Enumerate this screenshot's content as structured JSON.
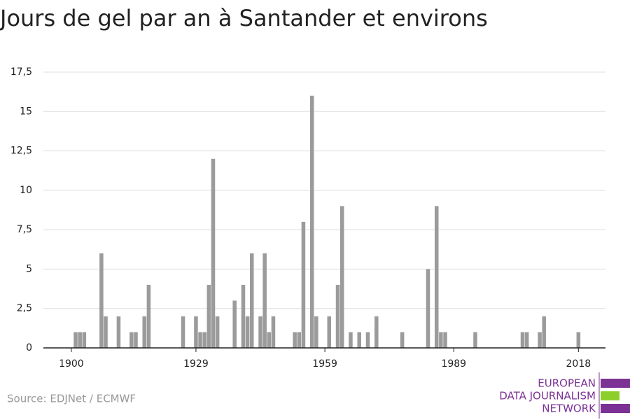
{
  "chart_data": {
    "type": "bar",
    "title": "Jours de gel par an à Santander et environs",
    "x": [
      1901,
      1902,
      1903,
      1907,
      1908,
      1911,
      1914,
      1915,
      1917,
      1918,
      1926,
      1929,
      1930,
      1931,
      1932,
      1933,
      1934,
      1938,
      1940,
      1941,
      1942,
      1944,
      1945,
      1946,
      1947,
      1952,
      1953,
      1954,
      1956,
      1957,
      1960,
      1962,
      1963,
      1965,
      1967,
      1969,
      1971,
      1977,
      1983,
      1985,
      1986,
      1987,
      1994,
      2005,
      2006,
      2009,
      2010,
      2018
    ],
    "values": [
      1,
      1,
      1,
      6,
      2,
      2,
      1,
      1,
      2,
      4,
      2,
      2,
      1,
      1,
      4,
      12,
      2,
      3,
      4,
      2,
      6,
      2,
      6,
      1,
      2,
      1,
      1,
      8,
      16,
      2,
      2,
      4,
      9,
      1,
      1,
      1,
      2,
      1,
      5,
      9,
      1,
      1,
      1,
      1,
      1,
      1,
      2,
      1
    ],
    "color": "#9b9b9b",
    "xlim": [
      1893.5,
      2024.3
    ],
    "xticks": [
      1900,
      1929,
      1959,
      1989,
      2018
    ],
    "ylim": [
      0,
      17.5
    ],
    "yticks": [
      0,
      {
        "value": 2.5,
        "label": "2,5"
      },
      5,
      {
        "value": 7.5,
        "label": "7,5"
      },
      10,
      {
        "value": 12.5,
        "label": "12,5"
      },
      15,
      {
        "value": 17.5,
        "label": "17,5"
      }
    ],
    "grid": true
  },
  "source": "Source: EDJNet / ECMWF",
  "logo": [
    "EUROPEAN",
    "DATA JOURNALISM",
    "NETWORK"
  ]
}
